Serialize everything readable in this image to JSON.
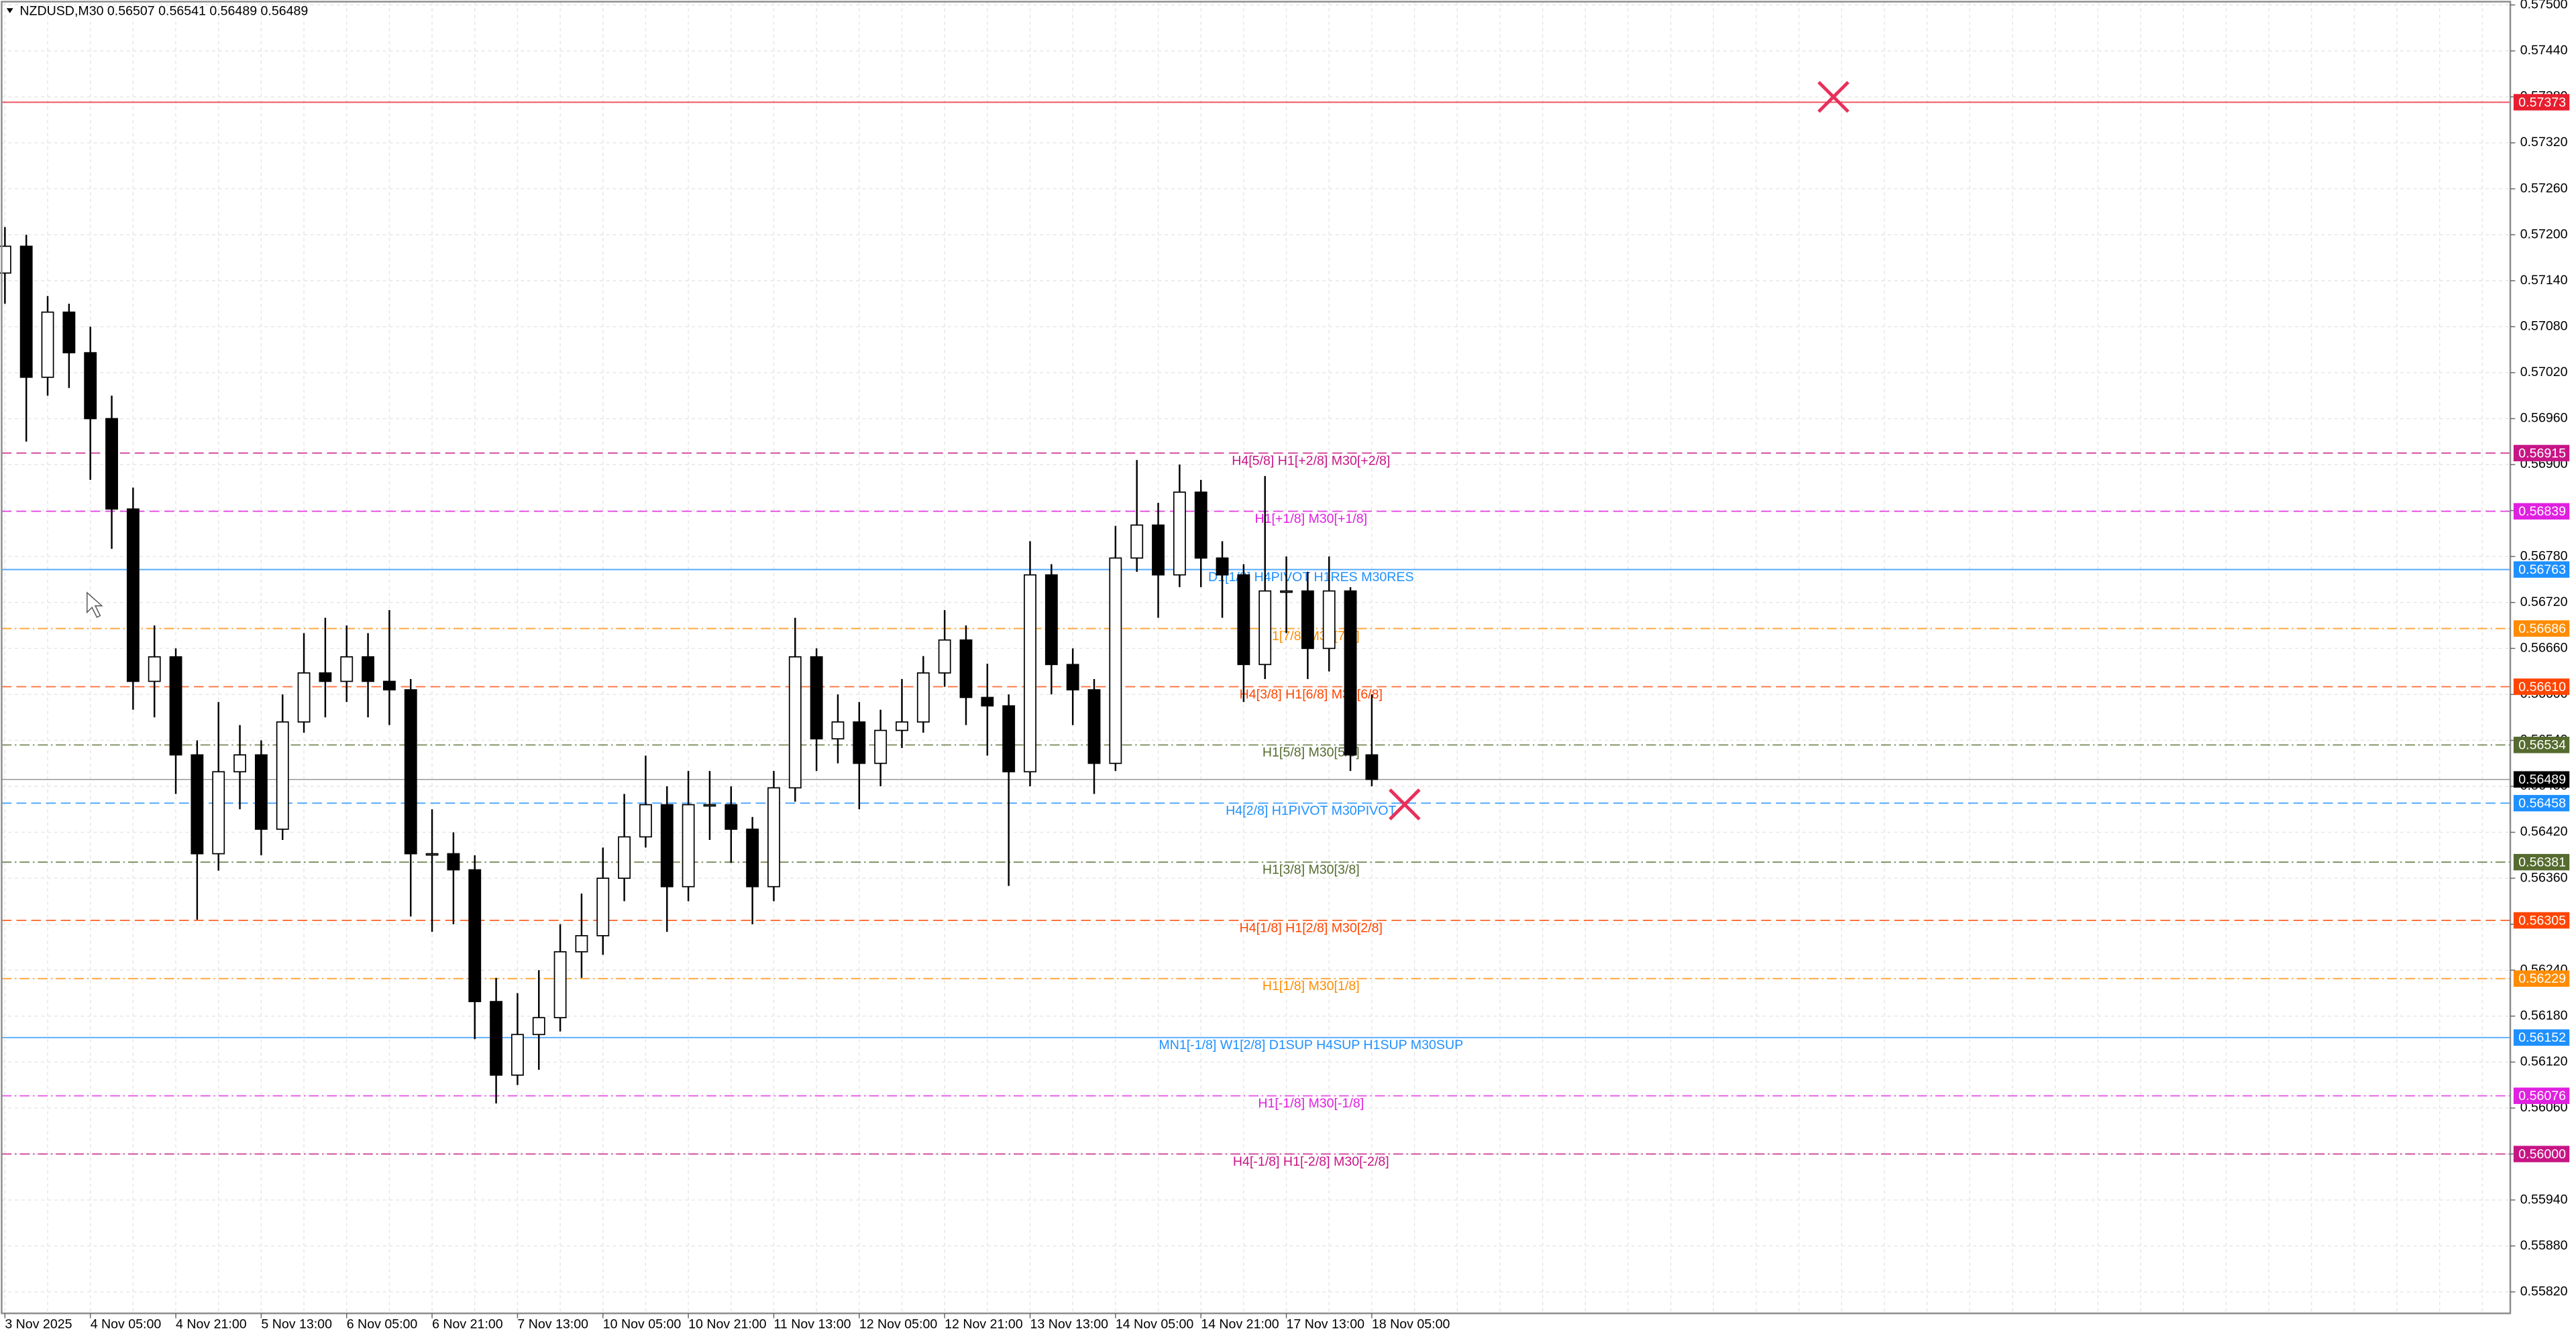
{
  "chart_data": {
    "type": "candlestick",
    "title": "NZDUSD,M30  0.56507 0.56541 0.56489 0.56489",
    "categories": [
      "3 Nov 2025",
      null,
      null,
      null,
      "4 Nov 05:00",
      null,
      null,
      null,
      "4 Nov 21:00",
      null,
      null,
      null,
      "5 Nov 13:00",
      null,
      null,
      null,
      "6 Nov 05:00",
      null,
      null,
      null,
      "6 Nov 21:00",
      null,
      null,
      null,
      "7 Nov 13:00",
      null,
      null,
      null,
      "10 Nov 05:00",
      null,
      null,
      null,
      "10 Nov 21:00",
      null,
      null,
      null,
      "11 Nov 13:00",
      null,
      null,
      null,
      "12 Nov 05:00",
      null,
      null,
      null,
      "12 Nov 21:00",
      null,
      null,
      null,
      "13 Nov 13:00",
      null,
      null,
      null,
      "14 Nov 05:00",
      null,
      null,
      null,
      "14 Nov 21:00",
      null,
      null,
      null,
      "17 Nov 13:00",
      null,
      null,
      null,
      "18 Nov 05:00"
    ],
    "open": [
      0.5715,
      0.57185,
      0.57014,
      0.57099,
      0.57046,
      0.5696,
      0.56842,
      0.56617,
      0.56649,
      0.56521,
      0.56392,
      0.56499,
      0.56521,
      0.56424,
      0.56564,
      0.56628,
      0.56617,
      0.56649,
      0.56617,
      0.56606,
      0.56392,
      0.56392,
      0.56371,
      0.56199,
      0.56103,
      0.56156,
      0.56178,
      0.56264,
      0.56285,
      0.5636,
      0.56414,
      0.56456,
      0.56349,
      0.56456,
      0.56456,
      0.56424,
      0.56349,
      0.56478,
      0.56649,
      0.56542,
      0.56564,
      0.5651,
      0.56553,
      0.56564,
      0.56628,
      0.56671,
      0.56596,
      0.56585,
      0.56499,
      0.56756,
      0.56639,
      0.56606,
      0.5651,
      0.56778,
      0.56821,
      0.56756,
      0.56864,
      0.56778,
      0.56756,
      0.56639,
      0.56735,
      0.56735,
      0.5666,
      0.56735,
      0.56521
    ],
    "high": [
      0.5721,
      0.572,
      0.5712,
      0.5711,
      0.5708,
      0.5699,
      0.5687,
      0.5669,
      0.5666,
      0.5654,
      0.5659,
      0.5656,
      0.5654,
      0.566,
      0.5668,
      0.567,
      0.5669,
      0.5668,
      0.5671,
      0.5662,
      0.5645,
      0.5642,
      0.5639,
      0.5623,
      0.5621,
      0.5624,
      0.563,
      0.5634,
      0.564,
      0.5647,
      0.5652,
      0.5648,
      0.565,
      0.565,
      0.5648,
      0.5644,
      0.565,
      0.567,
      0.5666,
      0.566,
      0.5659,
      0.5658,
      0.5662,
      0.5665,
      0.5671,
      0.5669,
      0.5664,
      0.566,
      0.568,
      0.5677,
      0.5666,
      0.5662,
      0.5682,
      0.56906,
      0.5685,
      0.569,
      0.5688,
      0.568,
      0.5677,
      0.56885,
      0.5678,
      0.5676,
      0.5678,
      0.5674,
      0.566
    ],
    "low": [
      0.5711,
      0.5693,
      0.5699,
      0.57,
      0.5688,
      0.5679,
      0.5658,
      0.5657,
      0.5647,
      0.56306,
      0.5637,
      0.5645,
      0.5639,
      0.5641,
      0.5655,
      0.5657,
      0.5659,
      0.5657,
      0.5656,
      0.5631,
      0.5629,
      0.563,
      0.5615,
      0.56066,
      0.5609,
      0.5611,
      0.5616,
      0.5623,
      0.5626,
      0.5633,
      0.564,
      0.5629,
      0.5633,
      0.5641,
      0.5638,
      0.563,
      0.5633,
      0.5646,
      0.565,
      0.5651,
      0.5645,
      0.5648,
      0.5653,
      0.5655,
      0.5661,
      0.5656,
      0.5652,
      0.5635,
      0.5648,
      0.566,
      0.5656,
      0.5647,
      0.565,
      0.5676,
      0.567,
      0.5674,
      0.5674,
      0.567,
      0.5659,
      0.5662,
      0.5668,
      0.5662,
      0.5663,
      0.565,
      0.5648
    ],
    "close": [
      0.57185,
      0.57014,
      0.57099,
      0.57046,
      0.5696,
      0.56842,
      0.56617,
      0.56649,
      0.56521,
      0.56392,
      0.56499,
      0.56521,
      0.56424,
      0.56564,
      0.56628,
      0.56617,
      0.56649,
      0.56617,
      0.56606,
      0.56392,
      0.56392,
      0.56371,
      0.56199,
      0.56103,
      0.56156,
      0.56178,
      0.56264,
      0.56285,
      0.5636,
      0.56414,
      0.56456,
      0.56349,
      0.56456,
      0.56456,
      0.56424,
      0.56349,
      0.56478,
      0.56649,
      0.56542,
      0.56564,
      0.5651,
      0.56553,
      0.56564,
      0.56628,
      0.56671,
      0.56596,
      0.56585,
      0.56499,
      0.56756,
      0.56639,
      0.56606,
      0.5651,
      0.56778,
      0.56821,
      0.56756,
      0.56864,
      0.56778,
      0.56756,
      0.56639,
      0.56735,
      0.56735,
      0.5666,
      0.56735,
      0.56521,
      0.56489
    ],
    "ylim": [
      0.55792,
      0.575
    ],
    "yticks": [
      {
        "value": 0.575,
        "label": "0.57500"
      },
      {
        "value": 0.5744,
        "label": "0.57440"
      },
      {
        "value": 0.5738,
        "label": "0.57380"
      },
      {
        "value": 0.5732,
        "label": "0.57320"
      },
      {
        "value": 0.5726,
        "label": "0.57260"
      },
      {
        "value": 0.572,
        "label": "0.57200"
      },
      {
        "value": 0.5714,
        "label": "0.57140"
      },
      {
        "value": 0.5708,
        "label": "0.57080"
      },
      {
        "value": 0.5702,
        "label": "0.57020"
      },
      {
        "value": 0.5696,
        "label": "0.56960"
      },
      {
        "value": 0.569,
        "label": "0.56900"
      },
      {
        "value": 0.5684,
        "label": "0.56840"
      },
      {
        "value": 0.5678,
        "label": "0.56780"
      },
      {
        "value": 0.5672,
        "label": "0.56720"
      },
      {
        "value": 0.5666,
        "label": "0.56660"
      },
      {
        "value": 0.566,
        "label": "0.56600"
      },
      {
        "value": 0.5654,
        "label": "0.56540"
      },
      {
        "value": 0.5648,
        "label": "0.56480"
      },
      {
        "value": 0.5642,
        "label": "0.56420"
      },
      {
        "value": 0.5636,
        "label": "0.56360"
      },
      {
        "value": 0.563,
        "label": "0.56300"
      },
      {
        "value": 0.5624,
        "label": "0.56240"
      },
      {
        "value": 0.5618,
        "label": "0.56180"
      },
      {
        "value": 0.5612,
        "label": "0.56120"
      },
      {
        "value": 0.5606,
        "label": "0.56060"
      },
      {
        "value": 0.56,
        "label": "0.56000"
      },
      {
        "value": 0.5594,
        "label": "0.55940"
      },
      {
        "value": 0.5588,
        "label": "0.55880"
      },
      {
        "value": 0.5582,
        "label": "0.55820"
      }
    ],
    "grid": true,
    "current_price": {
      "value": 0.56489,
      "label": "0.56489",
      "color": "#000000"
    },
    "levels": [
      {
        "value": 0.57373,
        "value_label": "0.57373",
        "color": "#e81e2e",
        "style": "solid"
      },
      {
        "name": "H4[5/8] H1[+2/8] M30[+2/8]",
        "value": 0.56915,
        "value_label": "0.56915",
        "color": "#c71585",
        "style": "dashed"
      },
      {
        "name": "H1[+1/8] M30[+1/8]",
        "value": 0.56839,
        "value_label": "0.56839",
        "color": "#e020e0",
        "style": "dashed"
      },
      {
        "name": "D1[1/8] H4PIVOT H1RES M30RES",
        "value": 0.56763,
        "value_label": "0.56763",
        "color": "#1e90ff",
        "style": "solid"
      },
      {
        "name": "H1[7/8] M30[7/8]",
        "value": 0.56686,
        "value_label": "0.56686",
        "color": "#ff8c00",
        "style": "dashdot"
      },
      {
        "name": "H4[3/8] H1[6/8] M30[6/8]",
        "value": 0.5661,
        "value_label": "0.56610",
        "color": "#ff4500",
        "style": "dashed"
      },
      {
        "name": "H1[5/8] M30[5/8]",
        "value": 0.56534,
        "value_label": "0.56534",
        "color": "#556b2f",
        "style": "dashdot"
      },
      {
        "name": "H4[2/8] H1PIVOT M30PIVOT",
        "value": 0.56458,
        "value_label": "0.56458",
        "color": "#1e90ff",
        "style": "dashed"
      },
      {
        "name": "H1[3/8] M30[3/8]",
        "value": 0.56381,
        "value_label": "0.56381",
        "color": "#556b2f",
        "style": "dashdot"
      },
      {
        "name": "H4[1/8] H1[2/8] M30[2/8]",
        "value": 0.56305,
        "value_label": "0.56305",
        "color": "#ff4500",
        "style": "dashed"
      },
      {
        "name": "H1[1/8] M30[1/8]",
        "value": 0.56229,
        "value_label": "0.56229",
        "color": "#ff8c00",
        "style": "dashdot"
      },
      {
        "name": "MN1[-1/8] W1[2/8] D1SUP H4SUP H1SUP M30SUP",
        "value": 0.56152,
        "value_label": "0.56152",
        "color": "#1e90ff",
        "style": "solid"
      },
      {
        "name": "H1[-1/8] M30[-1/8]",
        "value": 0.56076,
        "value_label": "0.56076",
        "color": "#e020e0",
        "style": "dashdot"
      },
      {
        "name": "H4[-1/8] H1[-2/8] M30[-2/8]",
        "value": 0.56,
        "value_label": "0.56000",
        "color": "#c71585",
        "style": "dashdot"
      }
    ]
  }
}
